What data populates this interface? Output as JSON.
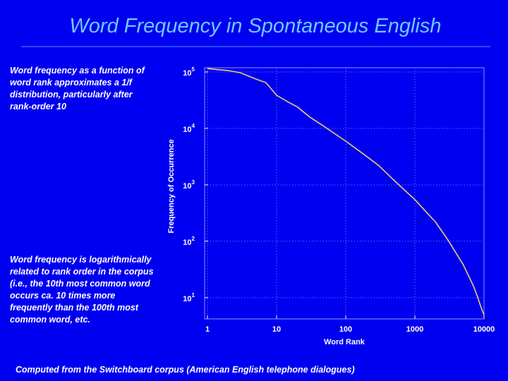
{
  "slide": {
    "title": "Word Frequency in Spontaneous English",
    "note_top": [
      "Word frequency as a function of",
      "word rank approximates a 1/f",
      "distribution, particularly after",
      "rank-order 10"
    ],
    "note_bottom": [
      "Word frequency is logarithmically",
      "related to rank order in the corpus",
      "(i.e., the 10th most common word",
      "occurs ca. 10 times more",
      "frequently than the 100th most",
      "common word, etc."
    ],
    "footer": "Computed from the Switchboard corpus (American English telephone dialogues)"
  },
  "chart_data": {
    "type": "line",
    "xlabel": "Word Rank",
    "ylabel": "Frequency of Occurrence",
    "x": [
      1,
      2,
      3,
      5,
      7,
      10,
      15,
      20,
      30,
      50,
      70,
      100,
      200,
      300,
      500,
      1000,
      2000,
      3000,
      5000,
      7000,
      8000,
      9000,
      10000
    ],
    "series": [
      {
        "name": "Frequency",
        "color": "#e8d070",
        "values": [
          115000,
          106000,
          97000,
          75000,
          65000,
          38700,
          29000,
          24000,
          16000,
          10600,
          8000,
          5960,
          3200,
          2200,
          1200,
          547,
          217,
          106,
          38.5,
          16.3,
          10.6,
          6.9,
          4.9
        ]
      }
    ],
    "xlog": true,
    "ylog": true,
    "grid": true,
    "xlim": [
      0.91,
      10000
    ],
    "ylim": [
      4.2,
      119000
    ],
    "xticks": [
      1,
      10,
      100,
      1000,
      10000
    ],
    "yticks": [
      {
        "value": 10,
        "label": "10",
        "sup": "1"
      },
      {
        "value": 100,
        "label": "10",
        "sup": "2"
      },
      {
        "value": 1000,
        "label": "10",
        "sup": "3"
      },
      {
        "value": 10000,
        "label": "10",
        "sup": "4"
      },
      {
        "value": 100000,
        "label": "10",
        "sup": "5"
      }
    ]
  }
}
